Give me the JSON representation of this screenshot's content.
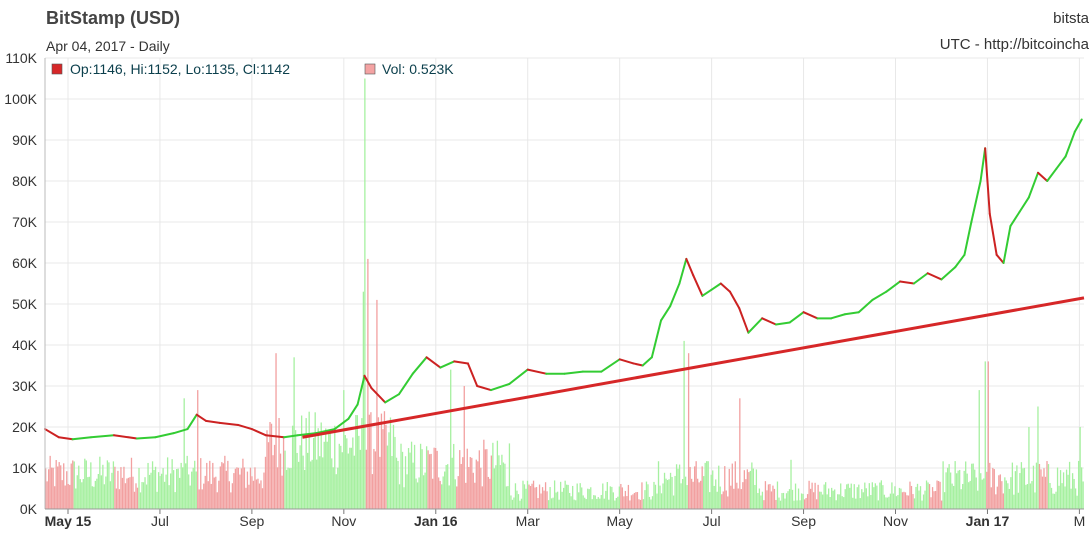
{
  "header": {
    "title": "BitStamp (USD)",
    "subtitle": "Apr 04, 2017 - Daily",
    "title_right": "bitsta",
    "subtitle_right": "UTC - http://bitcoincha"
  },
  "legend": {
    "ohlc": "Op:1146, Hi:1152, Lo:1135, Cl:1142",
    "ohlc_color": "#d62728",
    "vol": "Vol: 0.523K",
    "vol_color": "#f4a3a3"
  },
  "colors": {
    "price_up": "#33cc33",
    "price_down": "#cc2222",
    "vol_up": "#a6f0a0",
    "vol_down": "#f2a0a0",
    "trendline": "#d62728",
    "grid": "#e8e8e8"
  },
  "chart_data": {
    "type": "line",
    "title": "BitStamp (USD)",
    "ylim": [
      0,
      110
    ],
    "y_ticks": [
      "0K",
      "10K",
      "20K",
      "30K",
      "40K",
      "50K",
      "60K",
      "70K",
      "80K",
      "90K",
      "100K",
      "110K"
    ],
    "x_ticks": [
      {
        "label": "May 15",
        "bold": true,
        "t": 0.5
      },
      {
        "label": "Jul",
        "bold": false,
        "t": 2.5
      },
      {
        "label": "Sep",
        "bold": false,
        "t": 4.5
      },
      {
        "label": "Nov",
        "bold": false,
        "t": 6.5
      },
      {
        "label": "Jan 16",
        "bold": true,
        "t": 8.5
      },
      {
        "label": "Mar",
        "bold": false,
        "t": 10.5
      },
      {
        "label": "May",
        "bold": false,
        "t": 12.5
      },
      {
        "label": "Jul",
        "bold": false,
        "t": 14.5
      },
      {
        "label": "Sep",
        "bold": false,
        "t": 16.5
      },
      {
        "label": "Nov",
        "bold": false,
        "t": 18.5
      },
      {
        "label": "Jan 17",
        "bold": true,
        "t": 20.5
      },
      {
        "label": "M",
        "bold": false,
        "t": 22.5
      }
    ],
    "t_range": [
      0,
      22.6
    ],
    "series": [
      {
        "name": "Price",
        "points": [
          [
            0.0,
            19.5
          ],
          [
            0.3,
            17.5
          ],
          [
            0.6,
            17
          ],
          [
            1.0,
            17.5
          ],
          [
            1.5,
            18
          ],
          [
            2.0,
            17.2
          ],
          [
            2.4,
            17.5
          ],
          [
            2.8,
            18.5
          ],
          [
            3.1,
            19.5
          ],
          [
            3.3,
            23
          ],
          [
            3.5,
            21.5
          ],
          [
            3.8,
            21
          ],
          [
            4.2,
            20.5
          ],
          [
            4.5,
            19.5
          ],
          [
            4.8,
            18
          ],
          [
            5.2,
            17.5
          ],
          [
            5.5,
            18
          ],
          [
            5.9,
            18.5
          ],
          [
            6.3,
            19.5
          ],
          [
            6.6,
            22
          ],
          [
            6.8,
            25.5
          ],
          [
            6.95,
            32.5
          ],
          [
            7.1,
            29.5
          ],
          [
            7.4,
            26
          ],
          [
            7.7,
            28
          ],
          [
            8.0,
            33
          ],
          [
            8.3,
            37
          ],
          [
            8.6,
            34.5
          ],
          [
            8.9,
            36
          ],
          [
            9.2,
            35.5
          ],
          [
            9.4,
            30
          ],
          [
            9.7,
            29
          ],
          [
            10.1,
            30.5
          ],
          [
            10.5,
            34
          ],
          [
            10.9,
            33
          ],
          [
            11.3,
            33
          ],
          [
            11.7,
            33.5
          ],
          [
            12.1,
            33.5
          ],
          [
            12.5,
            36.5
          ],
          [
            12.8,
            35.5
          ],
          [
            13.0,
            35
          ],
          [
            13.2,
            37
          ],
          [
            13.4,
            46
          ],
          [
            13.6,
            49.5
          ],
          [
            13.8,
            55
          ],
          [
            13.95,
            61
          ],
          [
            14.1,
            57
          ],
          [
            14.3,
            52
          ],
          [
            14.5,
            53.5
          ],
          [
            14.7,
            55
          ],
          [
            14.9,
            53
          ],
          [
            15.1,
            49
          ],
          [
            15.3,
            43
          ],
          [
            15.6,
            46.5
          ],
          [
            15.9,
            45
          ],
          [
            16.2,
            45.5
          ],
          [
            16.5,
            48
          ],
          [
            16.8,
            46.5
          ],
          [
            17.1,
            46.5
          ],
          [
            17.4,
            47.5
          ],
          [
            17.7,
            48
          ],
          [
            18.0,
            51
          ],
          [
            18.3,
            53
          ],
          [
            18.6,
            55.5
          ],
          [
            18.9,
            55
          ],
          [
            19.2,
            57.5
          ],
          [
            19.5,
            56
          ],
          [
            19.8,
            59
          ],
          [
            20.0,
            62
          ],
          [
            20.15,
            70
          ],
          [
            20.35,
            80
          ],
          [
            20.45,
            88
          ],
          [
            20.55,
            72
          ],
          [
            20.7,
            62
          ],
          [
            20.85,
            60
          ],
          [
            21.0,
            69
          ],
          [
            21.2,
            72.5
          ],
          [
            21.4,
            76
          ],
          [
            21.6,
            82
          ],
          [
            21.8,
            80
          ],
          [
            22.0,
            83
          ],
          [
            22.2,
            86
          ],
          [
            22.4,
            92
          ],
          [
            22.55,
            95
          ]
        ]
      }
    ],
    "volume": {
      "name": "Vol",
      "spikes": [
        {
          "t": 6.95,
          "v": 105
        },
        {
          "t": 7.0,
          "v": 61
        },
        {
          "t": 6.9,
          "v": 53
        },
        {
          "t": 7.2,
          "v": 51
        },
        {
          "t": 6.5,
          "v": 29
        },
        {
          "t": 5.0,
          "v": 38
        },
        {
          "t": 5.4,
          "v": 37
        },
        {
          "t": 3.3,
          "v": 29
        },
        {
          "t": 3.0,
          "v": 27
        },
        {
          "t": 8.8,
          "v": 34
        },
        {
          "t": 9.1,
          "v": 30
        },
        {
          "t": 10.1,
          "v": 16
        },
        {
          "t": 13.9,
          "v": 41
        },
        {
          "t": 14.0,
          "v": 38
        },
        {
          "t": 15.1,
          "v": 27
        },
        {
          "t": 16.2,
          "v": 12
        },
        {
          "t": 20.45,
          "v": 36
        },
        {
          "t": 20.5,
          "v": 36
        },
        {
          "t": 20.3,
          "v": 29
        },
        {
          "t": 21.6,
          "v": 25
        },
        {
          "t": 21.4,
          "v": 20
        },
        {
          "t": 22.5,
          "v": 20
        }
      ]
    },
    "trendline": {
      "from": [
        5.6,
        17.5
      ],
      "to": [
        22.6,
        51.5
      ]
    }
  }
}
